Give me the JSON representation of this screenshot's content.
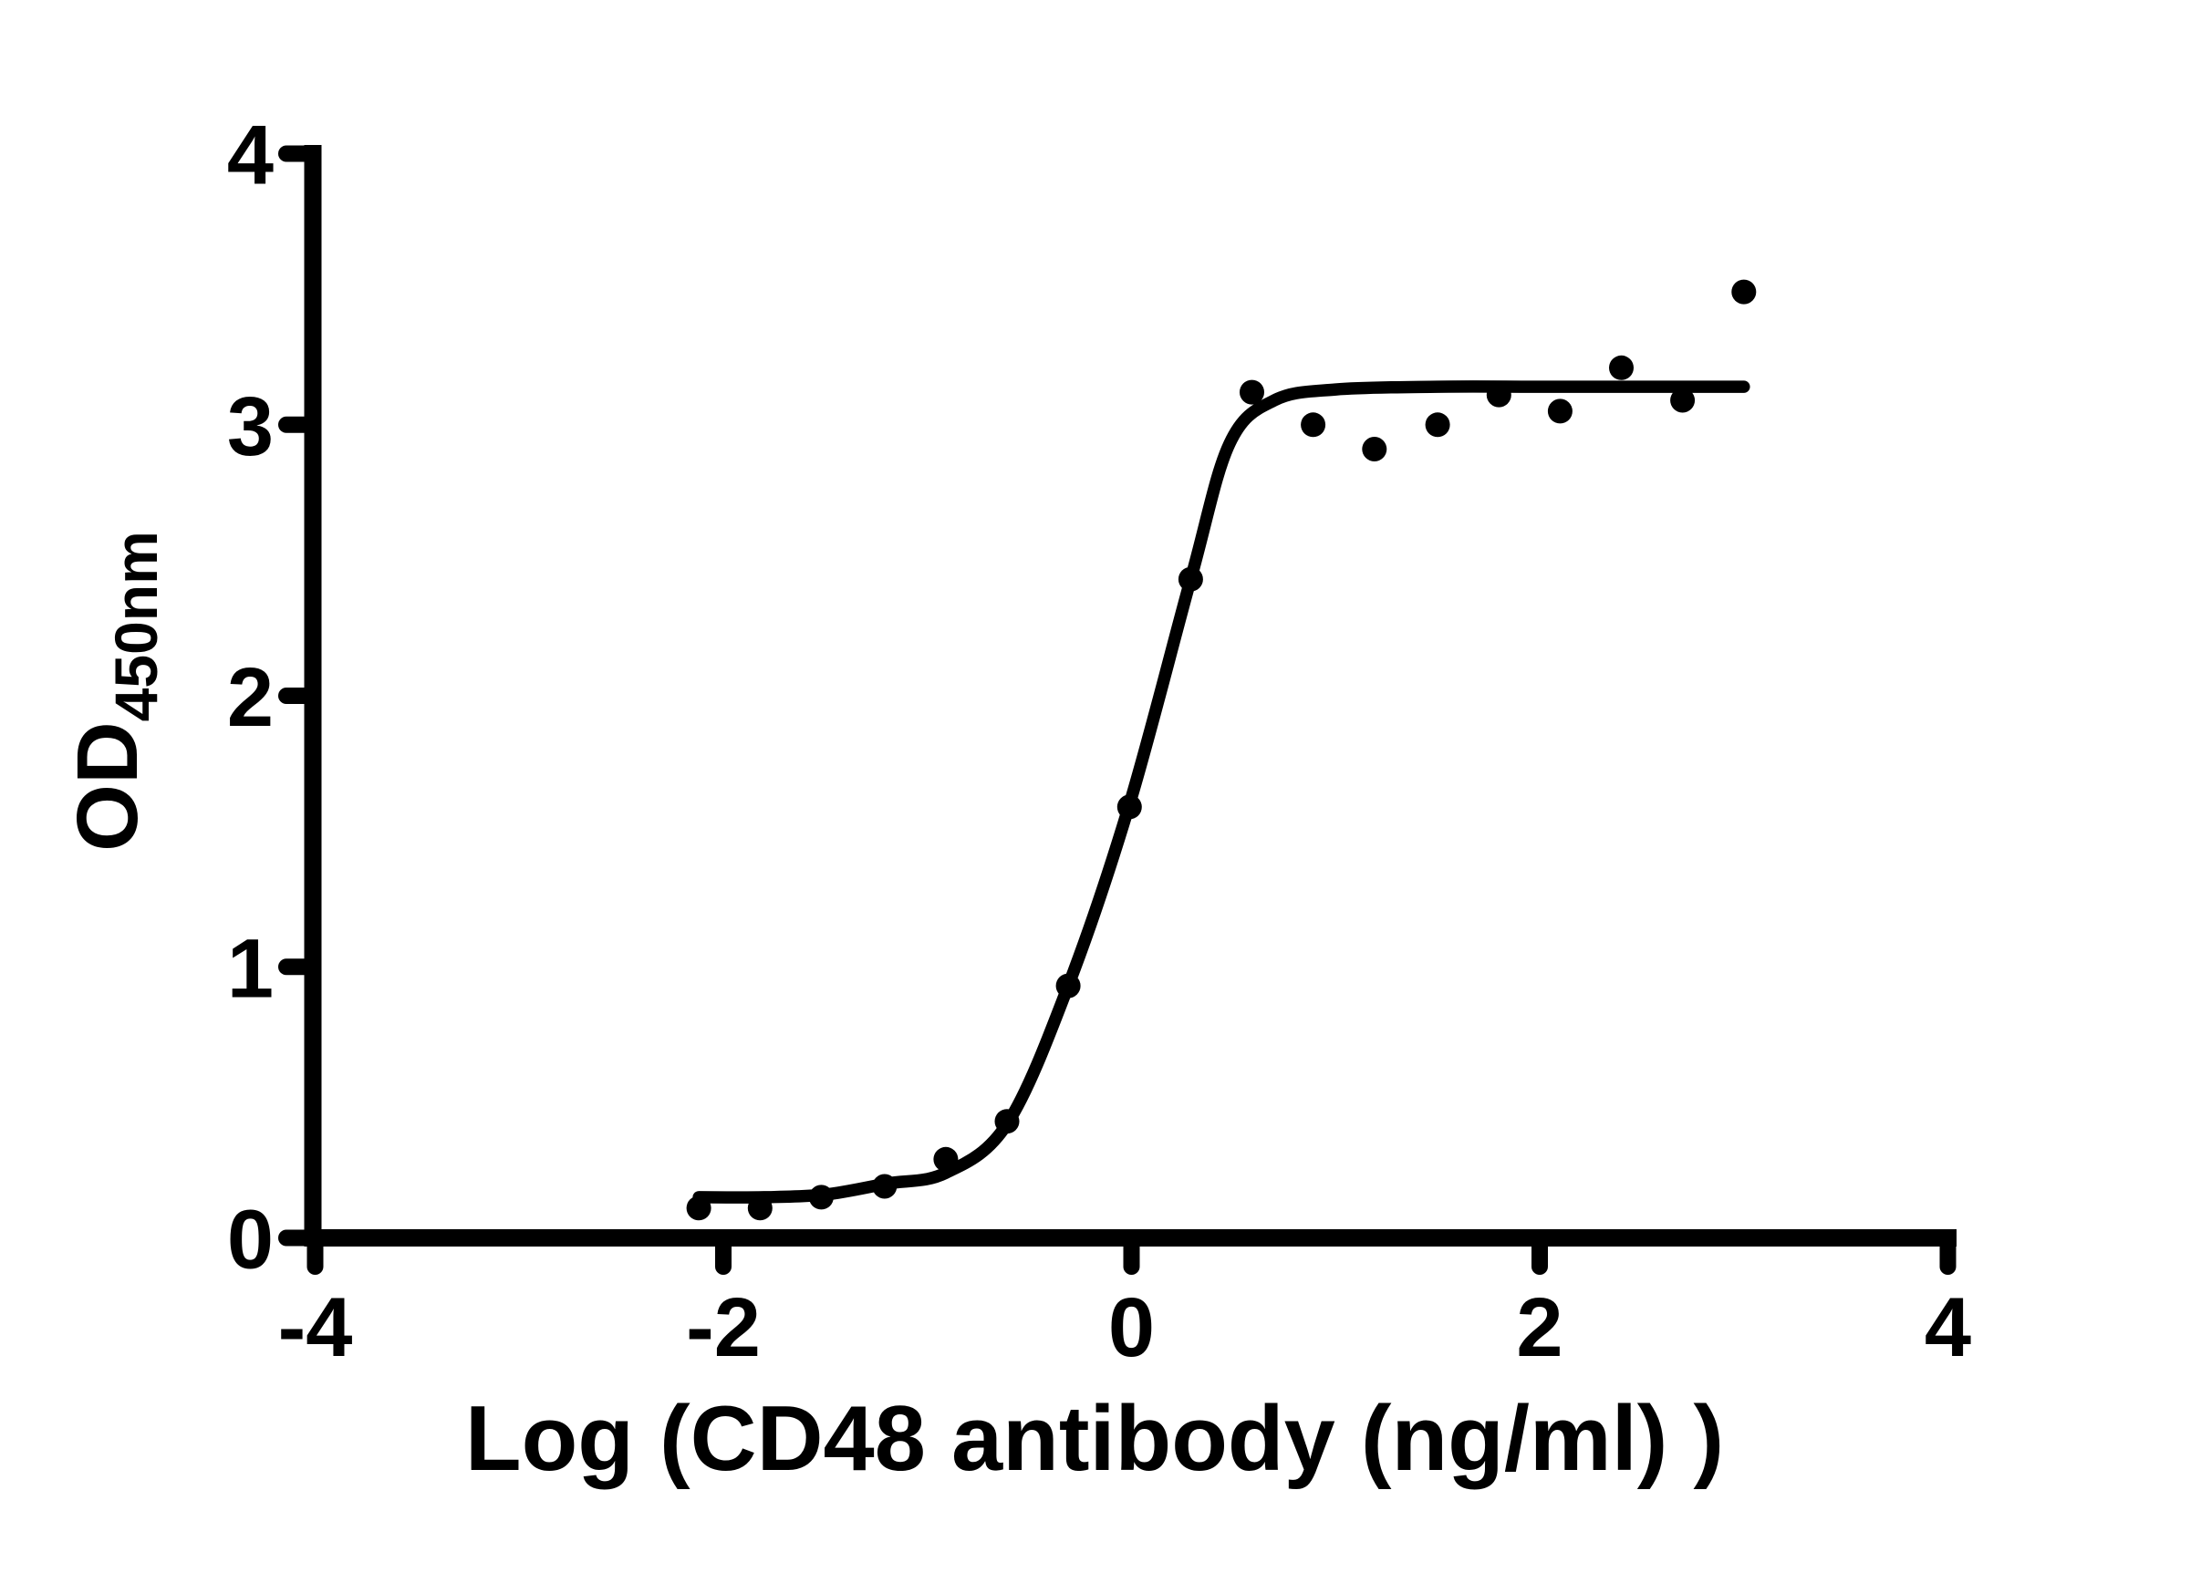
{
  "figure": {
    "background_color": "#ffffff",
    "ink_color": "#000000"
  },
  "chart_data": {
    "type": "scatter",
    "subtype": "ELISA dose-response with sigmoidal fit",
    "title": "",
    "xlabel": "Log (CD48 antibody (ng/ml) )",
    "ylabel_main": "OD",
    "ylabel_subscript": "450nm",
    "xlim": [
      -4,
      4
    ],
    "ylim": [
      0,
      4
    ],
    "x_ticks": [
      "-4",
      "-2",
      "0",
      "2",
      "4"
    ],
    "x_tick_values": [
      -4,
      -2,
      0,
      2,
      4
    ],
    "y_ticks": [
      "0",
      "1",
      "2",
      "3",
      "4"
    ],
    "y_tick_values": [
      0,
      1,
      2,
      3,
      4
    ],
    "grid": false,
    "legend_position": "none",
    "marker": {
      "shape": "circle",
      "color": "#000000",
      "radius_px": 13.5
    },
    "points": [
      {
        "log_conc": -2.12,
        "od": 0.11
      },
      {
        "log_conc": -1.82,
        "od": 0.11
      },
      {
        "log_conc": -1.52,
        "od": 0.15
      },
      {
        "log_conc": -1.21,
        "od": 0.19
      },
      {
        "log_conc": -0.91,
        "od": 0.29
      },
      {
        "log_conc": -0.61,
        "od": 0.43
      },
      {
        "log_conc": -0.31,
        "od": 0.93
      },
      {
        "log_conc": -0.01,
        "od": 1.59
      },
      {
        "log_conc": 0.29,
        "od": 2.43
      },
      {
        "log_conc": 0.59,
        "od": 3.12
      },
      {
        "log_conc": 0.89,
        "od": 3.0
      },
      {
        "log_conc": 1.19,
        "od": 2.91
      },
      {
        "log_conc": 1.5,
        "od": 3.0
      },
      {
        "log_conc": 1.8,
        "od": 3.11
      },
      {
        "log_conc": 2.1,
        "od": 3.05
      },
      {
        "log_conc": 2.4,
        "od": 3.21
      },
      {
        "log_conc": 2.7,
        "od": 3.09
      },
      {
        "log_conc": 3.0,
        "od": 3.49
      }
    ],
    "fit_curve": {
      "name": "four-parameter-logistic-fit",
      "color": "#000000",
      "bottom_plateau": 0.15,
      "top_plateau": 3.14,
      "waypoints": [
        [
          -2.12,
          0.15
        ],
        [
          -1.8,
          0.15
        ],
        [
          -1.5,
          0.16
        ],
        [
          -1.2,
          0.2
        ],
        [
          -0.91,
          0.24
        ],
        [
          -0.61,
          0.42
        ],
        [
          -0.31,
          0.93
        ],
        [
          -0.01,
          1.6
        ],
        [
          0.29,
          2.43
        ],
        [
          0.48,
          2.93
        ],
        [
          0.7,
          3.09
        ],
        [
          1.0,
          3.13
        ],
        [
          1.5,
          3.14
        ],
        [
          2.0,
          3.14
        ],
        [
          2.5,
          3.14
        ],
        [
          3.0,
          3.14
        ]
      ]
    }
  }
}
